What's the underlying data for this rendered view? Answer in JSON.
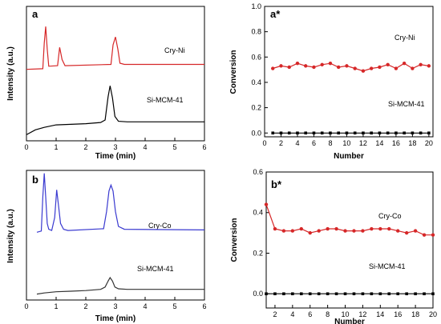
{
  "chart_data": [
    {
      "id": "a",
      "type": "line",
      "panel_label": "a",
      "xlabel": "Time (min)",
      "ylabel": "Intensity (a.u.)",
      "xlim": [
        0,
        6
      ],
      "xticks": [
        "0",
        "1",
        "2",
        "3",
        "4",
        "5",
        "6"
      ],
      "yticks_shown": false,
      "series": [
        {
          "name": "Cry-Ni",
          "color": "#d62728",
          "x": [
            0,
            0.55,
            0.6,
            0.65,
            0.7,
            0.75,
            1.05,
            1.12,
            1.2,
            1.3,
            2.85,
            2.92,
            3.0,
            3.08,
            3.15,
            3.3,
            6
          ],
          "y": [
            0.02,
            0.03,
            0.45,
            0.72,
            0.35,
            0.07,
            0.08,
            0.38,
            0.18,
            0.08,
            0.1,
            0.42,
            0.55,
            0.35,
            0.12,
            0.1,
            0.1
          ]
        },
        {
          "name": "Si-MCM-41",
          "color": "#000000",
          "x": [
            0,
            0.3,
            0.6,
            1.0,
            1.5,
            2.0,
            2.5,
            2.65,
            2.75,
            2.82,
            2.9,
            2.98,
            3.1,
            3.4,
            6
          ],
          "y": [
            0.0,
            0.08,
            0.12,
            0.16,
            0.17,
            0.18,
            0.2,
            0.24,
            0.62,
            0.8,
            0.6,
            0.3,
            0.22,
            0.21,
            0.21
          ]
        }
      ]
    },
    {
      "id": "a_star",
      "type": "line",
      "panel_label": "a*",
      "xlabel": "Number",
      "ylabel": "Conversion",
      "xlim": [
        0,
        20.5
      ],
      "ylim": [
        -0.03,
        1.0
      ],
      "xticks": [
        "0",
        "2",
        "4",
        "6",
        "8",
        "10",
        "12",
        "14",
        "16",
        "18",
        "20"
      ],
      "yticks": [
        "0.0",
        "0.2",
        "0.4",
        "0.6",
        "0.8",
        "1.0"
      ],
      "series": [
        {
          "name": "Cry-Ni",
          "color": "#d62728",
          "x": [
            1,
            2,
            3,
            4,
            5,
            6,
            7,
            8,
            9,
            10,
            11,
            12,
            13,
            14,
            15,
            16,
            17,
            18,
            19,
            20
          ],
          "y": [
            0.51,
            0.53,
            0.52,
            0.55,
            0.53,
            0.52,
            0.54,
            0.55,
            0.52,
            0.53,
            0.51,
            0.49,
            0.51,
            0.52,
            0.54,
            0.51,
            0.55,
            0.51,
            0.54,
            0.53
          ]
        },
        {
          "name": "Si-MCM-41",
          "color": "#000000",
          "x": [
            1,
            2,
            3,
            4,
            5,
            6,
            7,
            8,
            9,
            10,
            11,
            12,
            13,
            14,
            15,
            16,
            17,
            18,
            19,
            20
          ],
          "y": [
            0,
            0,
            0,
            0,
            0,
            0,
            0,
            0,
            0,
            0,
            0,
            0,
            0,
            0,
            0,
            0,
            0,
            0,
            0,
            0
          ]
        }
      ]
    },
    {
      "id": "b",
      "type": "line",
      "panel_label": "b",
      "xlabel": "Time (min)",
      "ylabel": "Intensity (a.u.)",
      "xlim": [
        0,
        6
      ],
      "xticks": [
        "0",
        "1",
        "2",
        "3",
        "4",
        "5",
        "6"
      ],
      "yticks_shown": false,
      "series": [
        {
          "name": "Cry-Co",
          "color": "#3a3ad0",
          "x": [
            0.35,
            0.5,
            0.55,
            0.6,
            0.65,
            0.7,
            0.75,
            0.85,
            0.95,
            1.02,
            1.08,
            1.15,
            1.25,
            1.4,
            2.6,
            2.7,
            2.78,
            2.85,
            2.92,
            3.0,
            3.1,
            3.3,
            6
          ],
          "y": [
            0.0,
            0.02,
            0.6,
            1.0,
            0.6,
            0.15,
            0.05,
            0.03,
            0.25,
            0.72,
            0.45,
            0.15,
            0.05,
            0.03,
            0.06,
            0.35,
            0.7,
            0.8,
            0.7,
            0.35,
            0.1,
            0.05,
            0.04
          ]
        },
        {
          "name": "Si-MCM-41",
          "color": "#333333",
          "x": [
            0.35,
            0.6,
            1.0,
            1.5,
            2.0,
            2.5,
            2.65,
            2.75,
            2.82,
            2.9,
            2.98,
            3.1,
            3.4,
            6
          ],
          "y": [
            0.0,
            0.02,
            0.04,
            0.05,
            0.06,
            0.08,
            0.12,
            0.22,
            0.28,
            0.22,
            0.12,
            0.09,
            0.08,
            0.08
          ]
        }
      ]
    },
    {
      "id": "b_star",
      "type": "line",
      "panel_label": "b*",
      "xlabel": "Number",
      "ylabel": "Conversion",
      "xlim": [
        1,
        20
      ],
      "ylim": [
        -0.07,
        0.6
      ],
      "xticks": [
        "2",
        "4",
        "6",
        "8",
        "10",
        "12",
        "14",
        "16",
        "18",
        "20"
      ],
      "yticks": [
        "0.0",
        "0.2",
        "0.4",
        "0.6"
      ],
      "series": [
        {
          "name": "Cry-Co",
          "color": "#d62728",
          "x": [
            1,
            2,
            3,
            4,
            5,
            6,
            7,
            8,
            9,
            10,
            11,
            12,
            13,
            14,
            15,
            16,
            17,
            18,
            19,
            20
          ],
          "y": [
            0.44,
            0.32,
            0.31,
            0.31,
            0.32,
            0.3,
            0.31,
            0.32,
            0.32,
            0.31,
            0.31,
            0.31,
            0.32,
            0.32,
            0.32,
            0.31,
            0.3,
            0.31,
            0.29,
            0.29
          ]
        },
        {
          "name": "Si-MCM-41",
          "color": "#000000",
          "x": [
            1,
            2,
            3,
            4,
            5,
            6,
            7,
            8,
            9,
            10,
            11,
            12,
            13,
            14,
            15,
            16,
            17,
            18,
            19,
            20
          ],
          "y": [
            0,
            0,
            0,
            0,
            0,
            0,
            0,
            0,
            0,
            0,
            0,
            0,
            0,
            0,
            0,
            0,
            0,
            0,
            0,
            0
          ]
        }
      ]
    }
  ]
}
